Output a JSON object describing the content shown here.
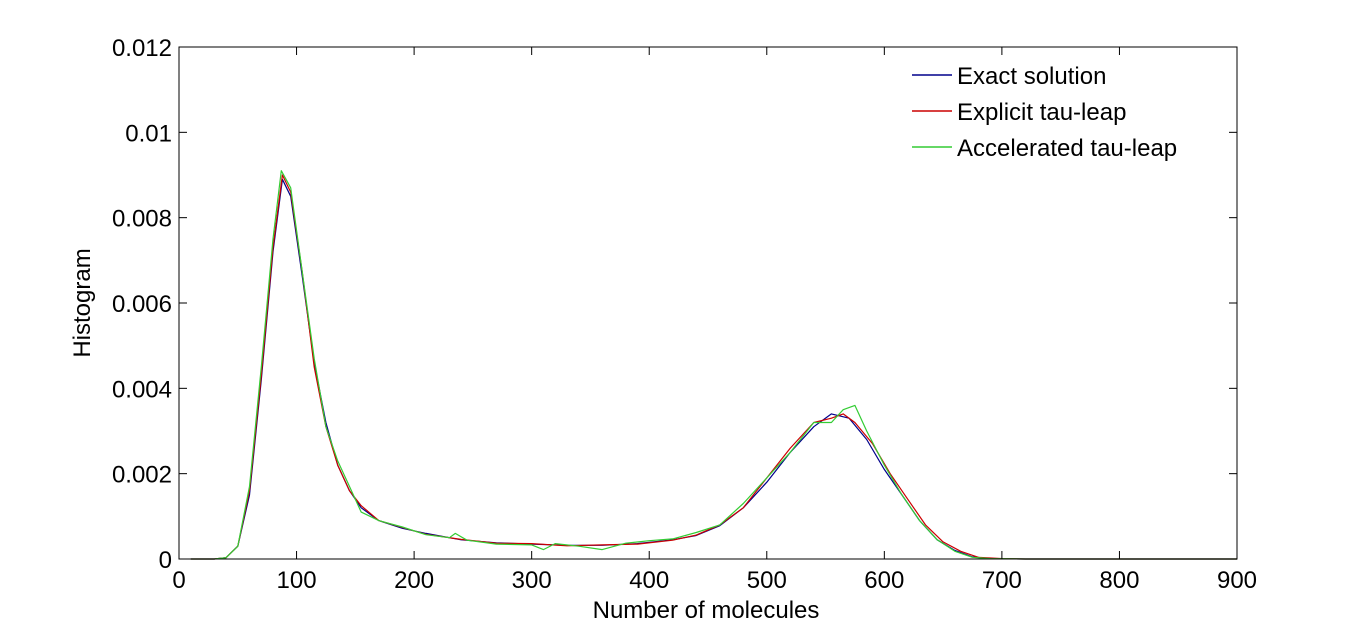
{
  "chart_data": {
    "type": "line",
    "title": "",
    "xlabel": "Number of molecules",
    "ylabel": "Histogram",
    "xlim": [
      0,
      900
    ],
    "ylim": [
      0,
      0.012
    ],
    "grid": false,
    "legend_position": "top-right",
    "x_ticks": [
      0,
      100,
      200,
      300,
      400,
      500,
      600,
      700,
      800,
      900
    ],
    "x_tick_labels": [
      "0",
      "100",
      "200",
      "300",
      "400",
      "500",
      "600",
      "700",
      "800",
      "900"
    ],
    "y_ticks": [
      0,
      0.002,
      0.004,
      0.006,
      0.008,
      0.01,
      0.012
    ],
    "y_tick_labels": [
      "0",
      "0.002",
      "0.004",
      "0.006",
      "0.008",
      "0.01",
      "0.012"
    ],
    "series": [
      {
        "name": "Exact solution",
        "color": "#00008b",
        "points": [
          [
            10,
            0
          ],
          [
            30,
            0
          ],
          [
            40,
            3e-05
          ],
          [
            50,
            0.0003
          ],
          [
            60,
            0.0015
          ],
          [
            70,
            0.0042
          ],
          [
            80,
            0.0072
          ],
          [
            88,
            0.0089
          ],
          [
            95,
            0.0085
          ],
          [
            105,
            0.0066
          ],
          [
            115,
            0.0046
          ],
          [
            125,
            0.0032
          ],
          [
            135,
            0.0022
          ],
          [
            145,
            0.0016
          ],
          [
            155,
            0.0012
          ],
          [
            170,
            0.0009
          ],
          [
            190,
            0.00072
          ],
          [
            210,
            0.0006
          ],
          [
            240,
            0.00045
          ],
          [
            270,
            0.00038
          ],
          [
            300,
            0.00035
          ],
          [
            330,
            0.00032
          ],
          [
            360,
            0.00032
          ],
          [
            390,
            0.00036
          ],
          [
            420,
            0.00045
          ],
          [
            440,
            0.00055
          ],
          [
            460,
            0.00078
          ],
          [
            480,
            0.0012
          ],
          [
            500,
            0.0018
          ],
          [
            520,
            0.0025
          ],
          [
            540,
            0.0031
          ],
          [
            555,
            0.0034
          ],
          [
            570,
            0.0033
          ],
          [
            585,
            0.0028
          ],
          [
            600,
            0.0021
          ],
          [
            615,
            0.0015
          ],
          [
            630,
            0.0009
          ],
          [
            645,
            0.00045
          ],
          [
            660,
            0.0002
          ],
          [
            675,
            5e-05
          ],
          [
            690,
            1e-05
          ],
          [
            720,
            0
          ],
          [
            900,
            0
          ]
        ]
      },
      {
        "name": "Explicit tau-leap",
        "color": "#cc0000",
        "points": [
          [
            10,
            0
          ],
          [
            30,
            0
          ],
          [
            40,
            3e-05
          ],
          [
            50,
            0.0003
          ],
          [
            60,
            0.0016
          ],
          [
            70,
            0.0043
          ],
          [
            80,
            0.0073
          ],
          [
            88,
            0.009
          ],
          [
            95,
            0.0086
          ],
          [
            105,
            0.0067
          ],
          [
            115,
            0.0045
          ],
          [
            125,
            0.0031
          ],
          [
            135,
            0.0022
          ],
          [
            145,
            0.0016
          ],
          [
            155,
            0.00125
          ],
          [
            170,
            0.0009
          ],
          [
            190,
            0.00074
          ],
          [
            210,
            0.00058
          ],
          [
            240,
            0.00046
          ],
          [
            270,
            0.00037
          ],
          [
            300,
            0.00036
          ],
          [
            330,
            0.00031
          ],
          [
            360,
            0.00033
          ],
          [
            390,
            0.00035
          ],
          [
            420,
            0.00044
          ],
          [
            440,
            0.00056
          ],
          [
            460,
            0.0008
          ],
          [
            480,
            0.0012
          ],
          [
            500,
            0.0019
          ],
          [
            520,
            0.0026
          ],
          [
            540,
            0.0032
          ],
          [
            555,
            0.0033
          ],
          [
            565,
            0.0034
          ],
          [
            575,
            0.0032
          ],
          [
            590,
            0.0027
          ],
          [
            605,
            0.002
          ],
          [
            620,
            0.0014
          ],
          [
            635,
            0.0008
          ],
          [
            650,
            0.0004
          ],
          [
            665,
            0.00018
          ],
          [
            680,
            4e-05
          ],
          [
            700,
            1e-05
          ],
          [
            720,
            0
          ],
          [
            900,
            0
          ]
        ]
      },
      {
        "name": "Accelerated tau-leap",
        "color": "#33cc33",
        "points": [
          [
            10,
            0
          ],
          [
            30,
            0
          ],
          [
            40,
            3e-05
          ],
          [
            50,
            0.0003
          ],
          [
            60,
            0.0017
          ],
          [
            70,
            0.0045
          ],
          [
            80,
            0.0075
          ],
          [
            87,
            0.0091
          ],
          [
            95,
            0.0087
          ],
          [
            105,
            0.0067
          ],
          [
            115,
            0.0047
          ],
          [
            125,
            0.0031
          ],
          [
            135,
            0.0023
          ],
          [
            145,
            0.0017
          ],
          [
            155,
            0.0011
          ],
          [
            170,
            0.0009
          ],
          [
            190,
            0.00075
          ],
          [
            210,
            0.00057
          ],
          [
            230,
            0.0005
          ],
          [
            235,
            0.0006
          ],
          [
            245,
            0.00044
          ],
          [
            270,
            0.00035
          ],
          [
            300,
            0.00033
          ],
          [
            310,
            0.00022
          ],
          [
            320,
            0.00036
          ],
          [
            340,
            0.0003
          ],
          [
            360,
            0.00022
          ],
          [
            380,
            0.00037
          ],
          [
            400,
            0.00043
          ],
          [
            420,
            0.00047
          ],
          [
            440,
            0.00062
          ],
          [
            460,
            0.0008
          ],
          [
            480,
            0.0013
          ],
          [
            500,
            0.0019
          ],
          [
            520,
            0.0025
          ],
          [
            540,
            0.0032
          ],
          [
            555,
            0.0032
          ],
          [
            565,
            0.0035
          ],
          [
            575,
            0.0036
          ],
          [
            585,
            0.003
          ],
          [
            600,
            0.0022
          ],
          [
            615,
            0.0015
          ],
          [
            630,
            0.0009
          ],
          [
            645,
            0.00045
          ],
          [
            660,
            0.00018
          ],
          [
            675,
            4e-05
          ],
          [
            690,
            1e-05
          ],
          [
            720,
            0
          ],
          [
            900,
            0
          ]
        ]
      }
    ]
  }
}
